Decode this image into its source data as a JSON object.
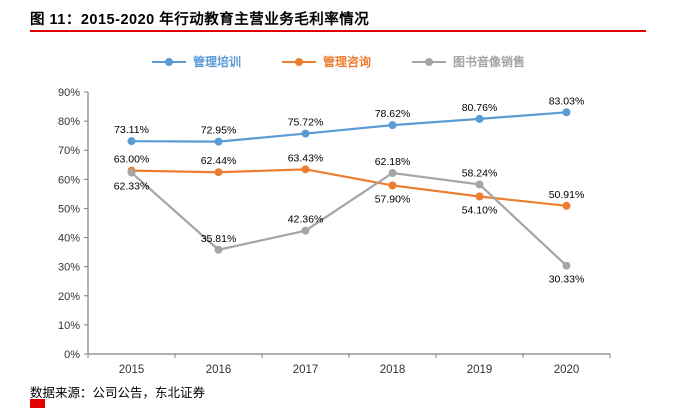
{
  "header": {
    "title": "图 11：2015-2020 年行动教育主营业务毛利率情况"
  },
  "footer": {
    "source": "数据来源：公司公告，东北证券"
  },
  "colors": {
    "accent_red": "#e00000",
    "axis": "#808080",
    "tick_text": "#333333",
    "label_text": "#000000"
  },
  "chart_data": {
    "type": "line",
    "title": "2015-2020 年行动教育主营业务毛利率情况",
    "categories": [
      "2015",
      "2016",
      "2017",
      "2018",
      "2019",
      "2020"
    ],
    "series": [
      {
        "name": "管理培训",
        "color": "#5b9bd5",
        "values": [
          73.11,
          72.95,
          75.72,
          78.62,
          80.76,
          83.03
        ],
        "label_pos": [
          "above",
          "above",
          "above",
          "above",
          "above",
          "above"
        ]
      },
      {
        "name": "管理咨询",
        "color": "#ed7d31",
        "values": [
          63.0,
          62.44,
          63.43,
          57.9,
          54.1,
          50.91
        ],
        "label_pos": [
          "above",
          "above",
          "above",
          "below",
          "below",
          "above"
        ]
      },
      {
        "name": "图书音像销售",
        "color": "#a5a5a5",
        "values": [
          62.33,
          35.81,
          42.36,
          62.18,
          58.24,
          30.33
        ],
        "label_pos": [
          "below",
          "above",
          "above",
          "above",
          "above",
          "below"
        ]
      }
    ],
    "ylim": [
      0,
      90
    ],
    "ytick_step": 10,
    "ytick_suffix": "%",
    "value_suffix": "%",
    "value_decimals": 2,
    "legend_position": "top",
    "grid": false
  }
}
